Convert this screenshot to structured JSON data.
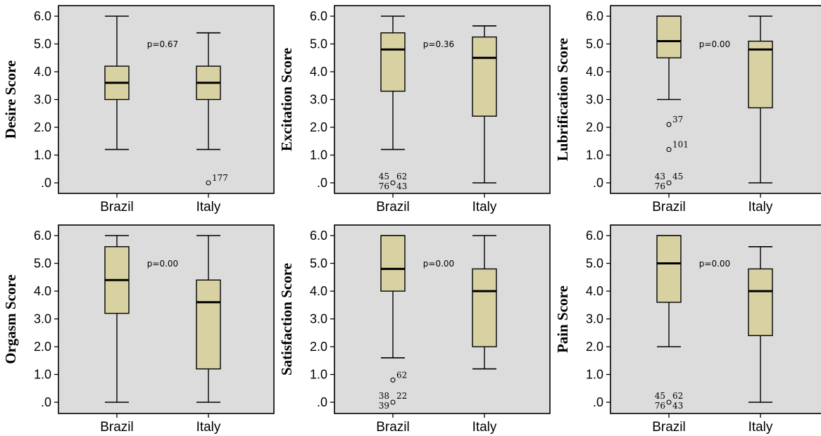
{
  "colors": {
    "plot_background": "#dcdcdc",
    "box_fill": "#d8d1a2",
    "stroke": "#000000"
  },
  "chart_data": [
    {
      "type": "boxplot",
      "ylabel": "Desire Score",
      "p_label": "p=0.67",
      "ylim": [
        0,
        6
      ],
      "y_ticks": [
        ".0",
        "1.0",
        "2.0",
        "3.0",
        "4.0",
        "5.0",
        "6.0"
      ],
      "categories": [
        "Brazil",
        "Italy"
      ],
      "boxes": [
        {
          "category": "Brazil",
          "min": 1.2,
          "q1": 3.0,
          "median": 3.6,
          "q3": 4.2,
          "max": 6.0,
          "outliers": []
        },
        {
          "category": "Italy",
          "min": 1.2,
          "q1": 3.0,
          "median": 3.6,
          "q3": 4.2,
          "max": 5.4,
          "outliers": [
            {
              "value": 0.0,
              "labels": [
                "177"
              ]
            }
          ]
        }
      ]
    },
    {
      "type": "boxplot",
      "ylabel": "Excitation Score",
      "p_label": "p=0.36",
      "ylim": [
        0,
        6
      ],
      "y_ticks": [
        ".0",
        "1.0",
        "2.0",
        "3.0",
        "4.0",
        "5.0",
        "6.0"
      ],
      "categories": [
        "Brazil",
        "Italy"
      ],
      "boxes": [
        {
          "category": "Brazil",
          "min": 1.2,
          "q1": 3.3,
          "median": 4.8,
          "q3": 5.4,
          "max": 6.0,
          "outliers": [
            {
              "value": 0.0,
              "labels": [
                "45",
                "62",
                "76",
                "43"
              ]
            }
          ]
        },
        {
          "category": "Italy",
          "min": 0.0,
          "q1": 2.4,
          "median": 4.5,
          "q3": 5.25,
          "max": 5.65,
          "outliers": []
        }
      ]
    },
    {
      "type": "boxplot",
      "ylabel": "Lubrification Score",
      "p_label": "p=0.00",
      "ylim": [
        0,
        6
      ],
      "y_ticks": [
        ".0",
        "1.0",
        "2.0",
        "3.0",
        "4.0",
        "5.0",
        "6.0"
      ],
      "categories": [
        "Brazil",
        "Italy"
      ],
      "boxes": [
        {
          "category": "Brazil",
          "min": 3.0,
          "q1": 4.5,
          "median": 5.1,
          "q3": 6.0,
          "max": 6.0,
          "outliers": [
            {
              "value": 2.1,
              "labels": [
                "37"
              ]
            },
            {
              "value": 1.2,
              "labels": [
                "101"
              ]
            },
            {
              "value": 0.0,
              "labels": [
                "43",
                "45",
                "76"
              ]
            }
          ]
        },
        {
          "category": "Italy",
          "min": 0.0,
          "q1": 2.7,
          "median": 4.8,
          "q3": 5.1,
          "max": 6.0,
          "outliers": []
        }
      ]
    },
    {
      "type": "boxplot",
      "ylabel": "Orgasm Score",
      "p_label": "p=0.00",
      "ylim": [
        0,
        6
      ],
      "y_ticks": [
        ".0",
        "1.0",
        "2.0",
        "3.0",
        "4.0",
        "5.0",
        "6.0"
      ],
      "categories": [
        "Brazil",
        "Italy"
      ],
      "boxes": [
        {
          "category": "Brazil",
          "min": 0.0,
          "q1": 3.2,
          "median": 4.4,
          "q3": 5.6,
          "max": 6.0,
          "outliers": []
        },
        {
          "category": "Italy",
          "min": 0.0,
          "q1": 1.2,
          "median": 3.6,
          "q3": 4.4,
          "max": 6.0,
          "outliers": []
        }
      ]
    },
    {
      "type": "boxplot",
      "ylabel": "Satisfaction Score",
      "p_label": "p=0.00",
      "ylim": [
        0,
        6
      ],
      "y_ticks": [
        ".0",
        "1.0",
        "2.0",
        "3.0",
        "4.0",
        "5.0",
        "6.0"
      ],
      "categories": [
        "Brazil",
        "Italy"
      ],
      "boxes": [
        {
          "category": "Brazil",
          "min": 1.6,
          "q1": 4.0,
          "median": 4.8,
          "q3": 6.0,
          "max": 6.0,
          "outliers": [
            {
              "value": 0.8,
              "labels": [
                "62"
              ]
            },
            {
              "value": 0.0,
              "labels": [
                "38",
                "22",
                "39"
              ]
            }
          ]
        },
        {
          "category": "Italy",
          "min": 1.2,
          "q1": 2.0,
          "median": 4.0,
          "q3": 4.8,
          "max": 6.0,
          "outliers": []
        }
      ]
    },
    {
      "type": "boxplot",
      "ylabel": "Pain Score",
      "p_label": "p=0.00",
      "ylim": [
        0,
        6
      ],
      "y_ticks": [
        ".0",
        "1.0",
        "2.0",
        "3.0",
        "4.0",
        "5.0",
        "6.0"
      ],
      "categories": [
        "Brazil",
        "Italy"
      ],
      "boxes": [
        {
          "category": "Brazil",
          "min": 2.0,
          "q1": 3.6,
          "median": 5.0,
          "q3": 6.0,
          "max": 6.0,
          "outliers": [
            {
              "value": 0.0,
              "labels": [
                "45",
                "62",
                "76",
                "43"
              ]
            }
          ]
        },
        {
          "category": "Italy",
          "min": 0.0,
          "q1": 2.4,
          "median": 4.0,
          "q3": 4.8,
          "max": 5.6,
          "outliers": []
        }
      ]
    }
  ]
}
